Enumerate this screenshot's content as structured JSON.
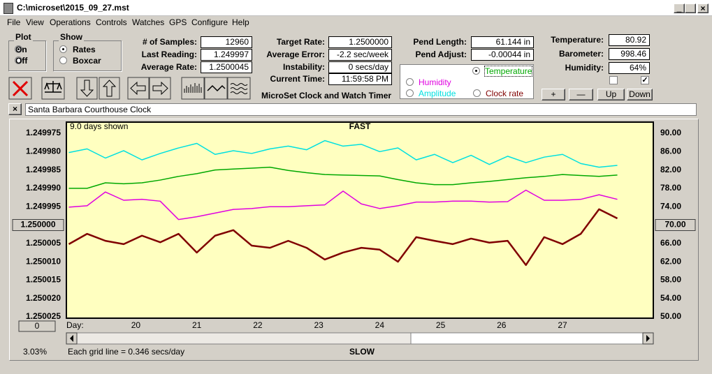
{
  "window": {
    "title": "C:\\microset\\2015_09_27.mst"
  },
  "menu": [
    "File",
    "View",
    "Operations",
    "Controls",
    "Watches",
    "GPS",
    "Configure",
    "Help"
  ],
  "plot_group": {
    "label": "Plot",
    "options": [
      "On",
      "Off"
    ]
  },
  "show_group": {
    "label": "Show",
    "options": [
      "Rates",
      "Boxcar"
    ]
  },
  "readings": [
    {
      "label": "# of Samples:",
      "value": "12960"
    },
    {
      "label": "Last Reading:",
      "value": "1.249997"
    },
    {
      "label": "Average Rate:",
      "value": "1.2500045"
    }
  ],
  "rates": [
    {
      "label": "Target Rate:",
      "value": "1.2500000"
    },
    {
      "label": "Average Error:",
      "value": "-2.2 sec/week"
    },
    {
      "label": "Instability:",
      "value": "0 secs/day"
    },
    {
      "label": "Current Time:",
      "value": "11:59:58 PM"
    }
  ],
  "pendulum": [
    {
      "label": "Pend Length:",
      "value": "61.144 in"
    },
    {
      "label": "Pend Adjust:",
      "value": "-0.00044 in"
    }
  ],
  "environment": [
    {
      "label": "Temperature:",
      "value": "80.92"
    },
    {
      "label": "Barometer:",
      "value": "998.46"
    },
    {
      "label": "Humidity:",
      "value": "64%"
    }
  ],
  "plot_buttons": [
    "+",
    "—",
    "Up",
    "Down"
  ],
  "app_name": "MicroSet Clock and Watch Timer",
  "clock_name": "Santa Barbara Courthouse Clock",
  "status": {
    "percent": "3.03%",
    "offset_button": "0"
  },
  "chart_data": {
    "type": "line",
    "days_shown": "9.0 days shown",
    "top_label": "FAST",
    "bottom_label": "SLOW",
    "x_label": "Day:",
    "grid_note": "Each grid line = 0.346 secs/day",
    "x": [
      18.9,
      19.2,
      19.5,
      19.8,
      20.1,
      20.4,
      20.7,
      21.0,
      21.3,
      21.6,
      21.9,
      22.2,
      22.5,
      22.8,
      23.1,
      23.4,
      23.7,
      24.0,
      24.3,
      24.6,
      24.9,
      25.2,
      25.5,
      25.8,
      26.1,
      26.4,
      26.7,
      27.0,
      27.3,
      27.6,
      27.9
    ],
    "xlim": [
      18.86,
      28.49
    ],
    "xticks": [
      20,
      21,
      22,
      23,
      24,
      25,
      26,
      27
    ],
    "ylim": [
      1.250025,
      1.249975
    ],
    "yticks": [
      1.249975,
      {
        "value": 1.24998,
        "label": "1.249980"
      },
      1.249985,
      {
        "value": 1.24999,
        "label": "1.249990"
      },
      1.249995,
      {
        "value": 1.25,
        "label": "1.250000"
      },
      1.250005,
      {
        "value": 1.25001,
        "label": "1.250010"
      },
      1.250015,
      {
        "value": 1.25002,
        "label": "1.250020"
      },
      1.250025
    ],
    "y2lim": [
      50,
      90
    ],
    "y2ticks": [
      {
        "value": 90,
        "label": "90.00"
      },
      {
        "value": 86,
        "label": "86.00"
      },
      {
        "value": 82,
        "label": "82.00"
      },
      {
        "value": 78,
        "label": "78.00"
      },
      {
        "value": 74,
        "label": "74.00"
      },
      {
        "value": 70,
        "label": "70.00"
      },
      {
        "value": 66,
        "label": "66.00"
      },
      {
        "value": 62,
        "label": "62.00"
      },
      {
        "value": 58,
        "label": "58.00"
      },
      {
        "value": 54,
        "label": "54.00"
      },
      {
        "value": 50,
        "label": "50.00"
      }
    ],
    "grid": false,
    "series": [
      {
        "name": "Temperature",
        "color": "#00a800",
        "axis": "y2",
        "values": [
          78.0,
          78.0,
          79.2,
          79.0,
          79.2,
          79.8,
          80.6,
          81.2,
          82.0,
          82.2,
          82.4,
          82.6,
          81.9,
          81.4,
          81.0,
          80.9,
          80.8,
          80.7,
          79.9,
          79.2,
          78.8,
          78.8,
          79.2,
          79.5,
          79.9,
          80.3,
          80.6,
          81.0,
          80.8,
          80.6,
          80.9
        ]
      },
      {
        "name": "Humidity",
        "color": "#e000e0",
        "axis": "y2",
        "values": [
          73.9,
          74.2,
          77.2,
          75.4,
          75.6,
          75.2,
          71.2,
          71.8,
          72.6,
          73.4,
          73.6,
          74.0,
          74.0,
          74.2,
          74.4,
          77.4,
          74.6,
          73.6,
          74.2,
          75.0,
          75.0,
          75.2,
          75.2,
          75.0,
          75.1,
          77.6,
          75.4,
          75.4,
          75.6,
          76.6,
          75.6
        ]
      },
      {
        "name": "Amplitude",
        "color": "#00e0e0",
        "axis": "y2",
        "values": [
          85.8,
          86.6,
          84.6,
          86.2,
          84.2,
          85.6,
          86.8,
          87.8,
          85.4,
          86.2,
          85.6,
          86.6,
          87.2,
          86.4,
          88.4,
          87.2,
          87.6,
          86.0,
          86.8,
          84.2,
          85.4,
          83.6,
          85.2,
          83.2,
          85.0,
          83.6,
          84.8,
          85.4,
          83.4,
          82.6,
          83.0
        ]
      },
      {
        "name": "Clock rate",
        "color": "#800000",
        "axis": "y",
        "values": [
          1.2500052,
          1.2500024,
          1.2500043,
          1.2500052,
          1.2500029,
          1.2500047,
          1.2500024,
          1.2500075,
          1.2500029,
          1.2500014,
          1.2500056,
          1.2500062,
          1.2500043,
          1.2500062,
          1.2500094,
          1.2500075,
          1.2500062,
          1.2500067,
          1.25001,
          1.2500033,
          1.2500043,
          1.2500052,
          1.2500037,
          1.2500048,
          1.2500043,
          1.2500109,
          1.2500033,
          1.2500052,
          1.2500024,
          1.2499957,
          1.2499982
        ]
      }
    ]
  }
}
